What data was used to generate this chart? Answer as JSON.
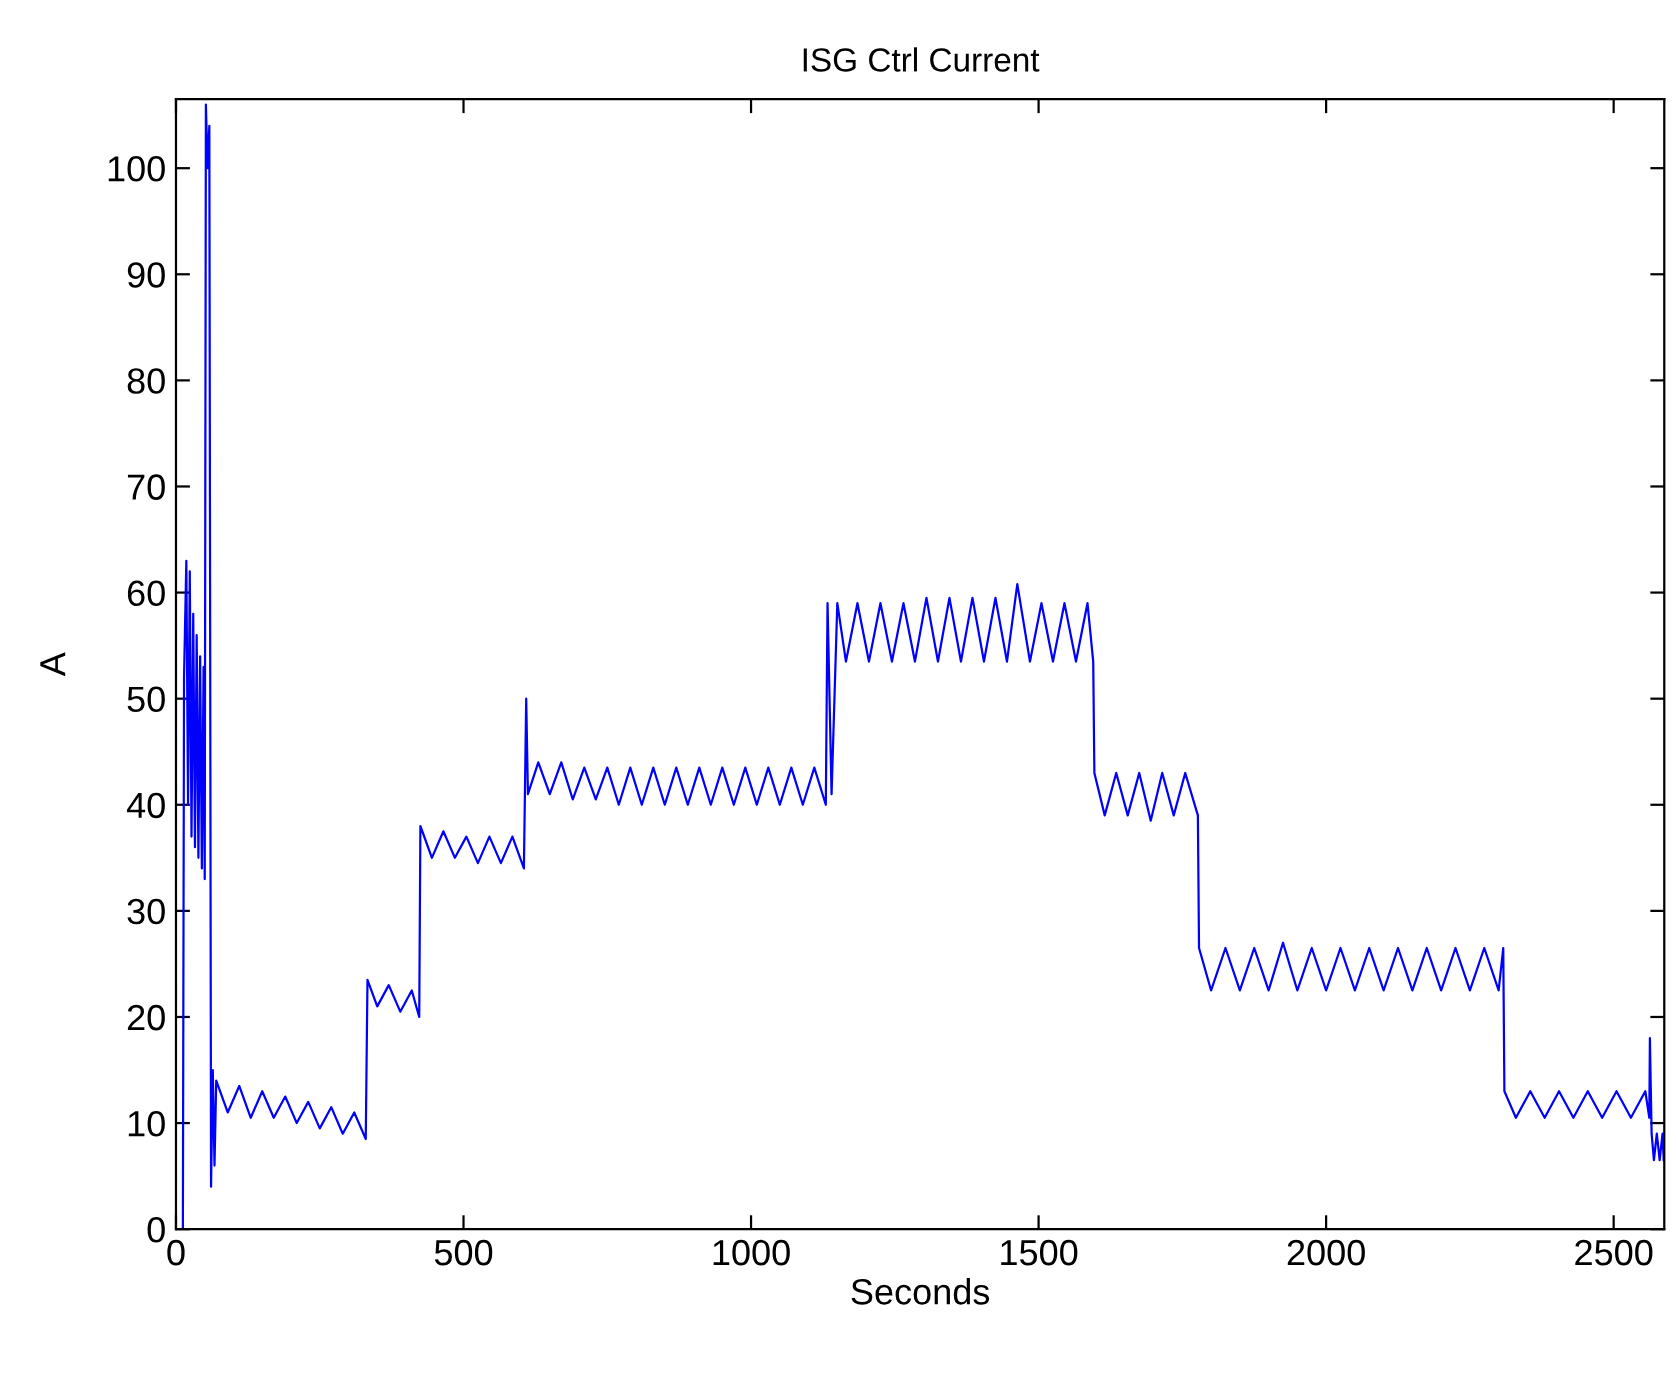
{
  "chart_data": {
    "type": "line",
    "title": "ISG Ctrl Current",
    "xlabel": "Seconds",
    "ylabel": "A",
    "xlim": [
      0,
      2588
    ],
    "ylim": [
      0,
      106.5
    ],
    "xticks": [
      0,
      500,
      1000,
      1500,
      2000,
      2500
    ],
    "yticks": [
      0,
      10,
      20,
      30,
      40,
      50,
      60,
      70,
      80,
      90,
      100
    ],
    "grid": false,
    "marker": "none",
    "line_style": "solid",
    "series": [
      {
        "color": "#0000ff",
        "x": [
          0,
          12,
          14,
          18,
          21,
          24,
          27,
          30,
          33,
          36,
          39,
          42,
          45,
          48,
          50,
          52,
          55,
          58,
          61,
          64,
          67,
          70,
          90,
          110,
          130,
          150,
          170,
          190,
          210,
          230,
          250,
          270,
          290,
          310,
          330,
          333,
          350,
          370,
          390,
          410,
          423,
          425,
          445,
          465,
          485,
          505,
          525,
          545,
          565,
          585,
          605,
          609,
          612,
          630,
          650,
          670,
          690,
          710,
          730,
          750,
          770,
          790,
          810,
          830,
          850,
          870,
          890,
          910,
          930,
          950,
          970,
          990,
          1010,
          1030,
          1050,
          1070,
          1090,
          1110,
          1130,
          1133,
          1140,
          1150,
          1165,
          1185,
          1205,
          1225,
          1245,
          1265,
          1285,
          1305,
          1325,
          1345,
          1365,
          1385,
          1405,
          1425,
          1445,
          1463,
          1485,
          1505,
          1525,
          1545,
          1565,
          1585,
          1595,
          1597,
          1615,
          1635,
          1655,
          1675,
          1695,
          1715,
          1735,
          1755,
          1777,
          1779,
          1800,
          1825,
          1850,
          1875,
          1900,
          1925,
          1950,
          1975,
          2000,
          2025,
          2050,
          2075,
          2100,
          2125,
          2150,
          2175,
          2200,
          2225,
          2250,
          2275,
          2300,
          2308,
          2310,
          2330,
          2355,
          2380,
          2405,
          2430,
          2455,
          2480,
          2505,
          2530,
          2555,
          2562,
          2563,
          2566,
          2570,
          2575,
          2580,
          2585,
          2587
        ],
        "values": [
          0,
          0,
          52,
          63,
          40,
          62,
          37,
          58,
          36,
          56,
          35,
          54,
          34,
          53,
          33,
          106,
          100,
          104,
          4,
          15,
          6,
          14,
          11,
          13.5,
          10.5,
          13,
          10.5,
          12.5,
          10,
          12,
          9.5,
          11.5,
          9,
          11,
          8.5,
          23.5,
          21,
          23,
          20.5,
          22.5,
          20,
          38,
          35,
          37.5,
          35,
          37,
          34.5,
          37,
          34.5,
          37,
          34,
          50,
          41,
          44,
          41,
          44,
          40.5,
          43.5,
          40.5,
          43.5,
          40,
          43.5,
          40,
          43.5,
          40,
          43.5,
          40,
          43.5,
          40,
          43.5,
          40,
          43.5,
          40,
          43.5,
          40,
          43.5,
          40,
          43.5,
          40,
          59,
          41,
          59,
          53.5,
          59,
          53.5,
          59,
          53.5,
          59,
          53.5,
          59.5,
          53.5,
          59.5,
          53.5,
          59.5,
          53.5,
          59.5,
          53.5,
          60.8,
          53.5,
          59,
          53.5,
          59,
          53.5,
          59,
          53.5,
          43,
          39,
          43,
          39,
          43,
          38.5,
          43,
          39,
          43,
          39,
          26.5,
          22.5,
          26.5,
          22.5,
          26.5,
          22.5,
          27,
          22.5,
          26.5,
          22.5,
          26.5,
          22.5,
          26.5,
          22.5,
          26.5,
          22.5,
          26.5,
          22.5,
          26.5,
          22.5,
          26.5,
          22.5,
          26.5,
          13,
          10.5,
          13,
          10.5,
          13,
          10.5,
          13,
          10.5,
          13,
          10.5,
          13,
          10.5,
          18,
          9,
          6.5,
          9,
          6.5,
          9,
          6.5
        ]
      }
    ]
  }
}
